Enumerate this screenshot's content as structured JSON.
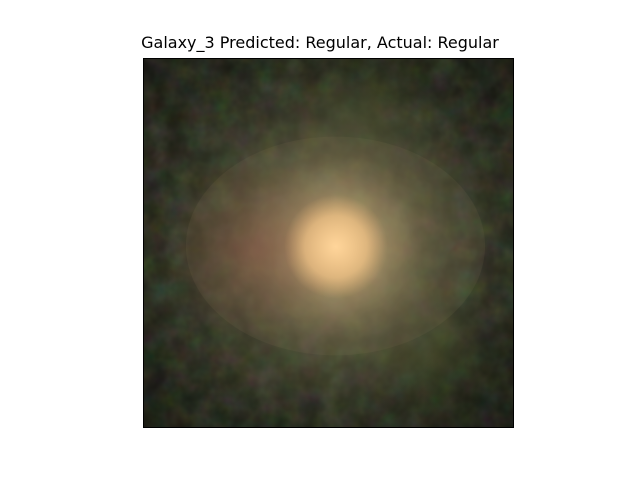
{
  "figure": {
    "title": "Galaxy_3 Predicted: Regular, Actual: Regular"
  },
  "image": {
    "subject": "galaxy-photo",
    "core_color": "#f0c486",
    "halo_color": "#8e8a5e",
    "background_color": "#1c1e14"
  }
}
